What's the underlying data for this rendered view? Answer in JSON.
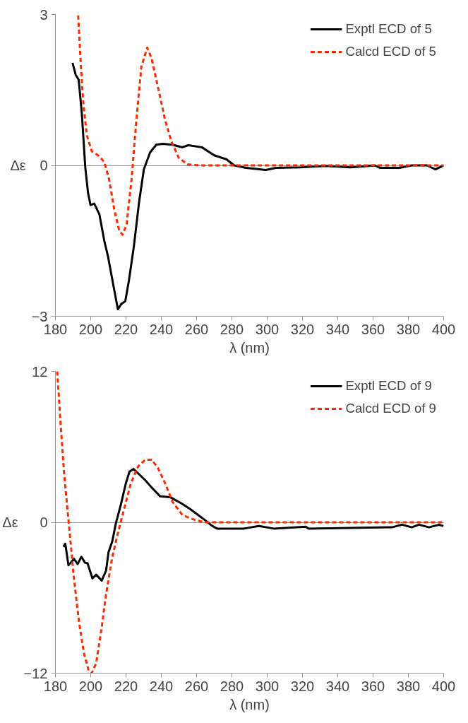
{
  "chart_data": [
    {
      "type": "line",
      "xlabel": "λ (nm)",
      "ylabel": "Δε",
      "xlim": [
        180,
        400
      ],
      "xticks": [
        180,
        200,
        220,
        240,
        260,
        280,
        300,
        320,
        340,
        360,
        380,
        400
      ],
      "ylim": [
        -3,
        3
      ],
      "yticks": [
        -3,
        0,
        3
      ],
      "grid": "y",
      "legend": "top right",
      "series": [
        {
          "name": "Exptl ECD of 5",
          "color": "#000000",
          "line_style": "solid",
          "x": [
            189.7,
            191.5,
            193.2,
            195,
            196.9,
            198.5,
            199.9,
            202,
            204.9,
            207.7,
            209.8,
            212.6,
            215.4,
            217.5,
            219.6,
            221.7,
            224.5,
            227.3,
            230.1,
            233.7,
            237.2,
            240.7,
            246.3,
            251.8,
            255.3,
            263,
            270,
            277,
            281.3,
            288,
            299.3,
            305,
            319,
            333,
            347,
            361,
            364,
            375,
            382,
            390.5,
            395.4,
            400
          ],
          "values": [
            2.04,
            1.8,
            1.7,
            1.02,
            -0.03,
            -0.55,
            -0.79,
            -0.76,
            -0.97,
            -1.5,
            -1.81,
            -2.34,
            -2.86,
            -2.75,
            -2.7,
            -2.28,
            -1.6,
            -0.76,
            -0.08,
            0.26,
            0.41,
            0.43,
            0.41,
            0.36,
            0.4,
            0.36,
            0.2,
            0.12,
            0.0,
            -0.05,
            -0.09,
            -0.05,
            -0.04,
            -0.01,
            -0.04,
            0.0,
            -0.05,
            -0.05,
            0.0,
            0.0,
            -0.08,
            0.0
          ]
        },
        {
          "name": "Calcd ECD of 5",
          "color": "#ff2a00",
          "line_style": "dashed",
          "x": [
            192.9,
            194.3,
            195.7,
            197.8,
            200.6,
            204.2,
            207.7,
            210.5,
            213.3,
            216.1,
            218,
            220.3,
            223.1,
            225.9,
            228.7,
            232,
            234.4,
            237.9,
            242.1,
            245.6,
            249.9,
            254.8,
            261.7,
            300,
            350,
            400
          ],
          "values": [
            2.98,
            2.06,
            1.28,
            0.6,
            0.28,
            0.2,
            0.07,
            -0.29,
            -0.87,
            -1.29,
            -1.38,
            -1.18,
            -0.29,
            0.91,
            1.96,
            2.34,
            2.14,
            1.59,
            0.91,
            0.49,
            0.15,
            0.02,
            0,
            0,
            0,
            0
          ]
        }
      ]
    },
    {
      "type": "line",
      "xlabel": "λ (nm)",
      "ylabel": "Δε",
      "xlim": [
        180,
        400
      ],
      "xticks": [
        180,
        200,
        220,
        240,
        260,
        280,
        300,
        320,
        340,
        360,
        380,
        400
      ],
      "ylim": [
        -12,
        12
      ],
      "yticks": [
        -12,
        0,
        12
      ],
      "grid": "y",
      "legend": "top right",
      "series": [
        {
          "name": "Exptl ECD of 9",
          "color": "#000000",
          "line_style": "solid",
          "x": [
            184.6,
            185.6,
            187.4,
            190.5,
            192.6,
            194.7,
            196.8,
            198.2,
            201,
            203.1,
            206.2,
            208.7,
            210.1,
            212.2,
            214.3,
            217.1,
            219.9,
            222,
            224.3,
            226.9,
            231,
            235,
            239.4,
            245,
            250.6,
            256.2,
            263.2,
            268.8,
            271.6,
            286.9,
            295.3,
            303.7,
            321.9,
            323.3,
            370.7,
            376.4,
            382,
            386,
            391.7,
            397.4,
            400
          ],
          "values": [
            -1.95,
            -1.7,
            -3.42,
            -2.9,
            -3.32,
            -2.75,
            -3.21,
            -3.26,
            -4.47,
            -4.16,
            -4.64,
            -3.84,
            -2.37,
            -1.53,
            -0.06,
            1.41,
            3.09,
            4.03,
            4.24,
            3.89,
            3.33,
            2.7,
            2.06,
            2.0,
            1.57,
            1.07,
            0.34,
            -0.29,
            -0.5,
            -0.5,
            -0.29,
            -0.5,
            -0.35,
            -0.5,
            -0.4,
            -0.19,
            -0.4,
            -0.19,
            -0.4,
            -0.2,
            -0.3
          ]
        },
        {
          "name": "Calcd ECD of 9",
          "color": "#ff2a00",
          "line_style": "dashed",
          "x": [
            181,
            182.8,
            184.9,
            187.7,
            190.5,
            193.3,
            196.1,
            198.9,
            200.6,
            203.1,
            205.9,
            208.7,
            212.2,
            215.7,
            219.2,
            222.7,
            226.9,
            231,
            234.5,
            238,
            242.2,
            246.4,
            252,
            258.8,
            264.4,
            300,
            350,
            400
          ],
          "values": [
            12,
            8.13,
            3.93,
            -0.27,
            -4.47,
            -7.84,
            -10.36,
            -11.83,
            -12,
            -11.2,
            -8.68,
            -5.74,
            -2.79,
            -0.69,
            1.2,
            3.09,
            4.45,
            4.98,
            4.98,
            4.35,
            3.09,
            1.62,
            0.57,
            0.2,
            0,
            0,
            0,
            0
          ]
        }
      ]
    }
  ]
}
